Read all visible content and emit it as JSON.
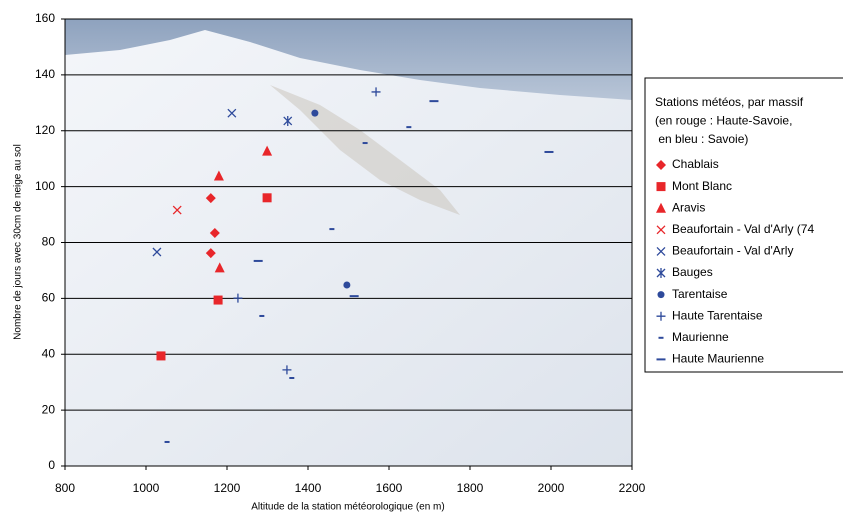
{
  "chart_data": {
    "type": "scatter",
    "x_label": "Altitude de la station météorologique (en m)",
    "y_label": "Nombre de jours avec 30cm de neige au sol",
    "xlim": [
      800,
      2200
    ],
    "xticks": [
      800,
      1000,
      1200,
      1400,
      1600,
      1800,
      2000,
      2200
    ],
    "ylim": [
      0,
      160
    ],
    "yticks": [
      0,
      20,
      40,
      60,
      80,
      100,
      120,
      140,
      160
    ],
    "grid": true,
    "legend_title": [
      "Stations météos, par massif",
      "(en rouge : Haute-Savoie,",
      " en bleu : Savoie)"
    ],
    "legend_position": "right",
    "series": [
      {
        "name": "Chablais",
        "color": "#e8262a",
        "marker": "diamond",
        "x": [
          1160,
          1170,
          1160
        ],
        "y": [
          95.9,
          83.4,
          76.2
        ]
      },
      {
        "name": "Mont Blanc",
        "color": "#e8262a",
        "marker": "square",
        "x": [
          1299,
          1178,
          1037
        ],
        "y": [
          96,
          59.4,
          39.4
        ]
      },
      {
        "name": "Aravis",
        "color": "#e8262a",
        "marker": "triangle",
        "x": [
          1299,
          1180,
          1182
        ],
        "y": [
          112.7,
          103.8,
          70.9
        ]
      },
      {
        "name": "Beaufortain - Val d'Arly (74",
        "color": "#e8262a",
        "marker": "x",
        "x": [
          1077
        ],
        "y": [
          91.6
        ]
      },
      {
        "name": "Beaufortain - Val d'Arly",
        "color": "#2e4a9b",
        "marker": "x",
        "x": [
          1027,
          1212
        ],
        "y": [
          76.6,
          126.3
        ]
      },
      {
        "name": "Bauges",
        "color": "#2e4a9b",
        "marker": "star",
        "x": [
          1350
        ],
        "y": [
          123.5
        ]
      },
      {
        "name": "Tarentaise",
        "color": "#2e4a9b",
        "marker": "circle",
        "x": [
          1417,
          1496
        ],
        "y": [
          126.3,
          64.8
        ]
      },
      {
        "name": "Haute Tarentaise",
        "color": "#2e4a9b",
        "marker": "plus",
        "x": [
          1568,
          1227,
          1348
        ],
        "y": [
          133.9,
          60.1,
          34.4
        ]
      },
      {
        "name": "Maurienne",
        "color": "#2e4a9b",
        "marker": "dash",
        "x": [
          1052,
          1286,
          1459,
          1541,
          1649,
          1360
        ],
        "y": [
          8.6,
          53.7,
          84.8,
          115.6,
          121.3,
          31.5
        ]
      },
      {
        "name": "Haute Maurienne",
        "color": "#2e4a9b",
        "marker": "longdash",
        "x": [
          1277,
          1514,
          1711,
          1995
        ],
        "y": [
          73.4,
          60.8,
          130.6,
          112.4
        ]
      }
    ]
  }
}
